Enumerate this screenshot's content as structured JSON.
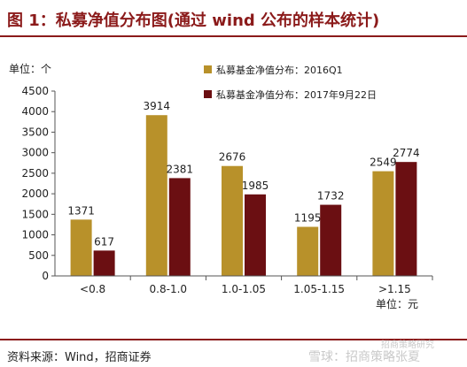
{
  "title": "图 1：私募净值分布图(通过 wind 公布的样本统计)",
  "source": "资料来源：Wind，招商证券",
  "watermark": "雪球：招商策略张夏",
  "watermark_top": "招商策略研究",
  "colors": {
    "series1": "#b8912a",
    "series2": "#6b0f12",
    "title": "#8b1a1a"
  },
  "chart_data": {
    "type": "bar",
    "categories": [
      "<0.8",
      "0.8-1.0",
      "1.0-1.05",
      "1.05-1.15",
      ">1.15"
    ],
    "series": [
      {
        "name": "私募基金净值分布：2016Q1",
        "values": [
          1371,
          3914,
          2676,
          1195,
          2549
        ]
      },
      {
        "name": "私募基金净值分布：2017年9月22日",
        "values": [
          617,
          2381,
          1985,
          1732,
          2774
        ]
      }
    ],
    "ylabel": "单位：个",
    "xlabel": "单位：元",
    "ylim": [
      0,
      4500
    ],
    "yticks": [
      0,
      500,
      1000,
      1500,
      2000,
      2500,
      3000,
      3500,
      4000,
      4500
    ],
    "legend_position": "top-right",
    "grid": false
  }
}
